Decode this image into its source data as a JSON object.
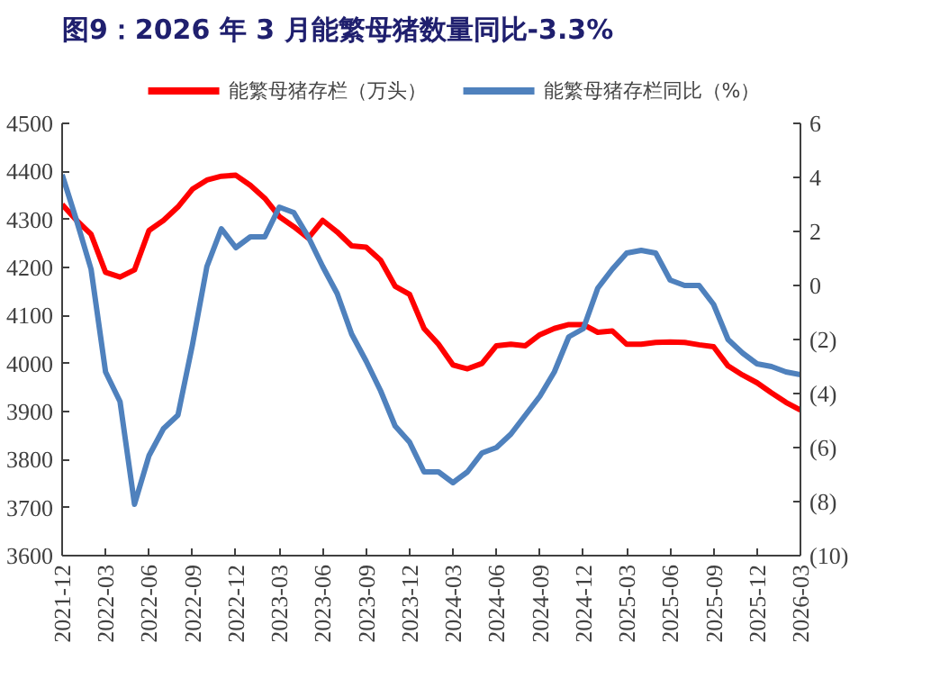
{
  "chart_data": {
    "type": "line",
    "title": "图9：2026 年 3 月能繁母猪数量同比-3.3%",
    "categories": [
      "2021-12",
      null,
      null,
      "2022-03",
      null,
      null,
      "2022-06",
      null,
      null,
      "2022-09",
      null,
      null,
      "2022-12",
      null,
      null,
      "2023-03",
      null,
      null,
      "2023-06",
      null,
      null,
      "2023-09",
      null,
      null,
      "2023-12",
      null,
      null,
      "2024-03",
      null,
      null,
      "2024-06",
      null,
      null,
      "2024-09",
      null,
      null,
      "2024-12",
      null,
      null,
      "2025-03",
      null,
      null,
      "2025-06",
      null,
      null,
      "2025-09",
      null,
      null,
      "2025-12",
      null,
      null,
      "2026-03"
    ],
    "series": [
      {
        "name": "能繁母猪存栏（万头）",
        "color": "#ff0000",
        "values": [
          4331,
          4298,
          4269,
          4190,
          4180,
          4195,
          4277,
          4298,
          4326,
          4363,
          4382,
          4390,
          4392,
          4371,
          4344,
          4306,
          4285,
          4261,
          4298,
          4274,
          4245,
          4242,
          4215,
          4161,
          4144,
          4073,
          4040,
          3997,
          3989,
          4000,
          4037,
          4040,
          4037,
          4060,
          4073,
          4081,
          4081,
          4065,
          4068,
          4040,
          4040,
          4044,
          4045,
          4044,
          4039,
          4035,
          3995,
          3976,
          3960,
          3939,
          3919,
          3903
        ]
      },
      {
        "name": "能繁母猪存栏同比（%）",
        "color": "#4f81bd",
        "axis": "y2",
        "values": [
          4.1,
          2.4,
          0.6,
          -3.2,
          -4.3,
          -8.1,
          -6.3,
          -5.3,
          -4.8,
          -2.2,
          0.7,
          2.1,
          1.4,
          1.8,
          1.8,
          2.9,
          2.7,
          1.8,
          0.7,
          -0.3,
          -1.8,
          -2.8,
          -3.9,
          -5.2,
          -5.8,
          -6.9,
          -6.9,
          -7.3,
          -6.9,
          -6.2,
          -6.0,
          -5.5,
          -4.8,
          -4.1,
          -3.2,
          -1.9,
          -1.6,
          -0.1,
          0.6,
          1.2,
          1.3,
          1.2,
          0.2,
          0.0,
          0.0,
          -0.7,
          -2.0,
          -2.5,
          -2.9,
          -3.0,
          -3.2,
          -3.3
        ]
      }
    ],
    "ylim": [
      3600,
      4500
    ],
    "yticks": [
      3600,
      3700,
      3800,
      3900,
      4000,
      4100,
      4200,
      4300,
      4400,
      4500
    ],
    "y2lim": [
      -10,
      6
    ],
    "y2ticks": [
      {
        "value": -10,
        "label": "(10)"
      },
      {
        "value": -8,
        "label": "(8)"
      },
      {
        "value": -6,
        "label": "(6)"
      },
      {
        "value": -4,
        "label": "(4)"
      },
      {
        "value": -2,
        "label": "(2)"
      },
      0,
      2,
      4,
      6
    ],
    "legend": "top",
    "grid": false
  }
}
